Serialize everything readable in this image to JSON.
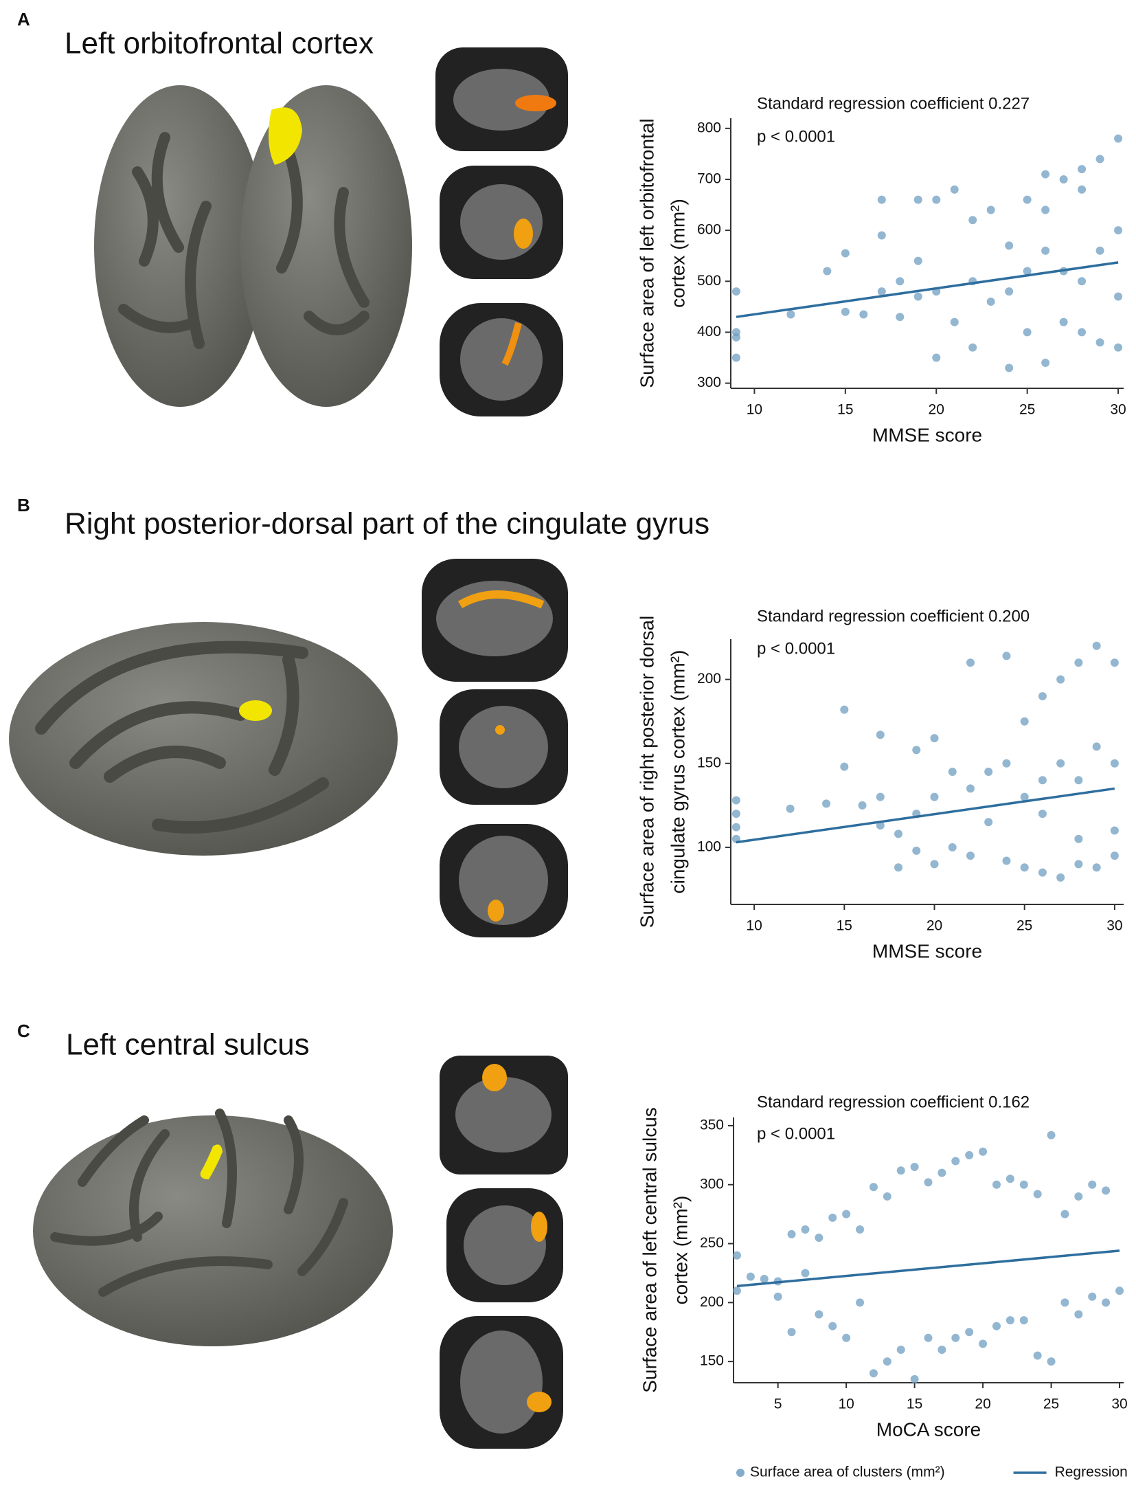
{
  "chart_data": [
    {
      "type": "scatter",
      "panel": "A",
      "title": "Left orbitofrontal cortex",
      "annotations": [
        "Standard regression coefficient 0.227",
        "p < 0.0001"
      ],
      "xlabel": "MMSE score",
      "ylabel": [
        "Surface area of left orbitofrontal",
        "cortex (mm²)"
      ],
      "xlim": [
        8.7,
        30.3
      ],
      "ylim": [
        290,
        820
      ],
      "xticks": [
        10,
        15,
        20,
        25,
        30
      ],
      "yticks": [
        300,
        400,
        500,
        600,
        700,
        800
      ],
      "series": [
        {
          "mode": "markers",
          "color": "#6f9dc1",
          "x": [
            9,
            9,
            9,
            9,
            12,
            14,
            15,
            15,
            16,
            17,
            17,
            17,
            18,
            18,
            19,
            19,
            19,
            20,
            20,
            20,
            21,
            21,
            22,
            22,
            22,
            23,
            23,
            24,
            24,
            24,
            25,
            25,
            25,
            26,
            26,
            26,
            27,
            27,
            27,
            28,
            28,
            28,
            29,
            29,
            29,
            30,
            30,
            30,
            30,
            26,
            28
          ],
          "values": [
            480,
            400,
            390,
            350,
            435,
            520,
            555,
            440,
            435,
            660,
            590,
            480,
            500,
            430,
            660,
            540,
            470,
            660,
            480,
            350,
            680,
            420,
            620,
            500,
            370,
            640,
            460,
            570,
            480,
            330,
            660,
            520,
            400,
            710,
            560,
            340,
            700,
            520,
            420,
            680,
            500,
            400,
            740,
            560,
            380,
            780,
            600,
            470,
            370,
            640,
            720
          ]
        },
        {
          "mode": "line",
          "color": "#2e6e9e",
          "x": [
            9,
            30
          ],
          "values": [
            430,
            537
          ]
        }
      ]
    },
    {
      "type": "scatter",
      "panel": "B",
      "title": "Right posterior-dorsal part of the cingulate gyrus",
      "annotations": [
        "Standard regression coefficient 0.200",
        "p < 0.0001"
      ],
      "xlabel": "MMSE score",
      "ylabel": [
        "Surface area of right posterior dorsal",
        "cingulate gyrus cortex (mm²)"
      ],
      "xlim": [
        8.7,
        30.5
      ],
      "ylim": [
        66,
        224
      ],
      "xticks": [
        10,
        15,
        20,
        25,
        30
      ],
      "yticks": [
        100,
        150,
        200
      ],
      "series": [
        {
          "mode": "markers",
          "color": "#6f9dc1",
          "x": [
            9,
            9,
            9,
            9,
            12,
            14,
            15,
            15,
            16,
            17,
            17,
            17,
            18,
            18,
            19,
            19,
            19,
            20,
            20,
            20,
            21,
            21,
            22,
            22,
            22,
            23,
            23,
            24,
            24,
            24,
            25,
            25,
            25,
            26,
            26,
            26,
            27,
            27,
            27,
            28,
            28,
            28,
            29,
            29,
            29,
            30,
            30,
            30,
            30,
            26,
            28
          ],
          "values": [
            128,
            120,
            112,
            105,
            123,
            126,
            182,
            148,
            125,
            113,
            167,
            130,
            108,
            88,
            158,
            120,
            98,
            165,
            130,
            90,
            145,
            100,
            210,
            135,
            95,
            145,
            115,
            214,
            150,
            92,
            175,
            130,
            88,
            190,
            140,
            85,
            200,
            150,
            82,
            210,
            140,
            90,
            220,
            160,
            88,
            210,
            150,
            110,
            95,
            120,
            105
          ]
        },
        {
          "mode": "line",
          "color": "#2e6e9e",
          "x": [
            9,
            30
          ],
          "values": [
            103,
            135
          ]
        }
      ]
    },
    {
      "type": "scatter",
      "panel": "C",
      "title": "Left central sulcus",
      "annotations": [
        "Standard regression coefficient 0.162",
        "p < 0.0001"
      ],
      "xlabel": "MoCA score",
      "ylabel": [
        "Surface area of left central sulcus",
        "cortex (mm²)"
      ],
      "xlim": [
        1.75,
        30.3
      ],
      "ylim": [
        132,
        357
      ],
      "xticks": [
        5,
        10,
        15,
        20,
        25,
        30
      ],
      "yticks": [
        150,
        200,
        250,
        300,
        350
      ],
      "legend": "bottom",
      "series": [
        {
          "name": "Surface area of clusters (mm²)",
          "mode": "markers",
          "color": "#6f9dc1",
          "x": [
            2,
            2,
            3,
            4,
            5,
            5,
            6,
            6,
            7,
            7,
            8,
            8,
            9,
            9,
            10,
            10,
            11,
            11,
            12,
            12,
            13,
            13,
            14,
            14,
            15,
            15,
            16,
            16,
            17,
            17,
            18,
            18,
            19,
            19,
            20,
            20,
            21,
            21,
            22,
            22,
            23,
            23,
            24,
            24,
            25,
            25,
            26,
            26,
            27,
            27,
            28,
            28,
            29,
            29,
            30
          ],
          "values": [
            240,
            210,
            222,
            220,
            218,
            205,
            258,
            175,
            262,
            225,
            255,
            190,
            272,
            180,
            275,
            170,
            262,
            200,
            298,
            140,
            290,
            150,
            312,
            160,
            315,
            135,
            302,
            170,
            310,
            160,
            320,
            170,
            325,
            175,
            328,
            165,
            300,
            180,
            305,
            185,
            300,
            185,
            292,
            155,
            342,
            150,
            275,
            200,
            290,
            190,
            300,
            205,
            295,
            200,
            210
          ]
        },
        {
          "name": "Regression",
          "mode": "line",
          "color": "#2e6e9e",
          "x": [
            2,
            30
          ],
          "values": [
            214,
            244
          ]
        }
      ]
    }
  ]
}
